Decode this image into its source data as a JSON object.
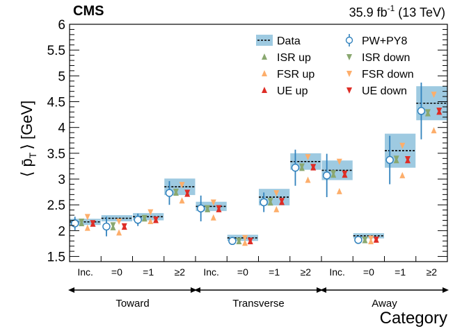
{
  "chart_data": {
    "type": "scatter",
    "title": "CMS",
    "lumi_label": "35.9 fb",
    "lumi_sup": "-1",
    "lumi_suffix": " (13 TeV)",
    "ylabel_left": "⟨ p̄",
    "ylabel_sub": "T",
    "ylabel_right": "⟩ [GeV]",
    "xlabel": "Category",
    "ylim": [
      1.4,
      6.0
    ],
    "yticks": [
      "1.5",
      "2",
      "2.5",
      "3",
      "3.5",
      "4",
      "4.5",
      "5",
      "5.5",
      "6"
    ],
    "ytick_values": [
      1.5,
      2,
      2.5,
      3,
      3.5,
      4,
      4.5,
      5,
      5.5,
      6
    ],
    "categories": [
      "Inc.",
      "=0",
      "=1",
      "≥2",
      "Inc.",
      "=0",
      "=1",
      "≥2",
      "Inc.",
      "=0",
      "=1",
      "≥2"
    ],
    "groups": [
      {
        "label": "Toward",
        "start": 0,
        "end": 3
      },
      {
        "label": "Transverse",
        "start": 4,
        "end": 7
      },
      {
        "label": "Away",
        "start": 8,
        "end": 11
      }
    ],
    "colors": {
      "data_band": "#9ecae1",
      "pwpy8": "#3182bd",
      "isr": "#8aa870",
      "fsr": "#fdae6b",
      "ue": "#de2d26"
    },
    "series": [
      {
        "name": "Data",
        "values": [
          2.17,
          2.24,
          2.27,
          2.85,
          2.47,
          1.86,
          2.65,
          3.34,
          3.17,
          1.9,
          3.55,
          4.47
        ],
        "unc": [
          0.06,
          0.06,
          0.07,
          0.16,
          0.09,
          0.06,
          0.16,
          0.16,
          0.19,
          0.05,
          0.33,
          0.33
        ]
      },
      {
        "name": "PW+PY8",
        "values": [
          2.14,
          2.08,
          2.21,
          2.73,
          2.43,
          1.8,
          2.55,
          3.22,
          3.07,
          1.82,
          3.37,
          4.32
        ],
        "err": [
          0.13,
          0.19,
          0.12,
          0.23,
          0.25,
          0.07,
          0.19,
          0.35,
          0.42,
          0.04,
          0.47,
          0.55
        ]
      },
      {
        "name": "ISR up",
        "values": [
          2.14,
          2.06,
          2.23,
          2.73,
          2.41,
          1.79,
          2.54,
          3.21,
          3.08,
          1.81,
          3.36,
          4.27
        ]
      },
      {
        "name": "ISR down",
        "values": [
          2.18,
          2.11,
          2.25,
          2.76,
          2.44,
          1.81,
          2.58,
          3.25,
          3.12,
          1.83,
          3.4,
          4.3
        ]
      },
      {
        "name": "FSR up",
        "values": [
          2.05,
          1.96,
          2.18,
          2.58,
          2.25,
          1.76,
          2.41,
          2.98,
          2.76,
          1.79,
          3.07,
          3.94
        ]
      },
      {
        "name": "FSR down",
        "values": [
          2.27,
          2.18,
          2.36,
          2.89,
          2.55,
          1.86,
          2.73,
          3.43,
          3.34,
          1.85,
          3.65,
          4.64
        ]
      },
      {
        "name": "UE up",
        "values": [
          2.13,
          2.07,
          2.2,
          2.71,
          2.41,
          1.79,
          2.55,
          3.22,
          3.08,
          1.82,
          3.36,
          4.3
        ]
      },
      {
        "name": "UE down",
        "values": [
          2.15,
          2.09,
          2.22,
          2.74,
          2.44,
          1.81,
          2.58,
          3.24,
          3.11,
          1.83,
          3.39,
          4.33
        ]
      }
    ],
    "legend": {
      "placement": "top-right",
      "entries": [
        {
          "label": "Data",
          "key": "data"
        },
        {
          "label": "PW+PY8",
          "key": "pwpy8"
        },
        {
          "label": "ISR up",
          "key": "isr_up"
        },
        {
          "label": "ISR down",
          "key": "isr_down"
        },
        {
          "label": "FSR up",
          "key": "fsr_up"
        },
        {
          "label": "FSR down",
          "key": "fsr_down"
        },
        {
          "label": "UE up",
          "key": "ue_up"
        },
        {
          "label": "UE down",
          "key": "ue_down"
        }
      ]
    }
  }
}
